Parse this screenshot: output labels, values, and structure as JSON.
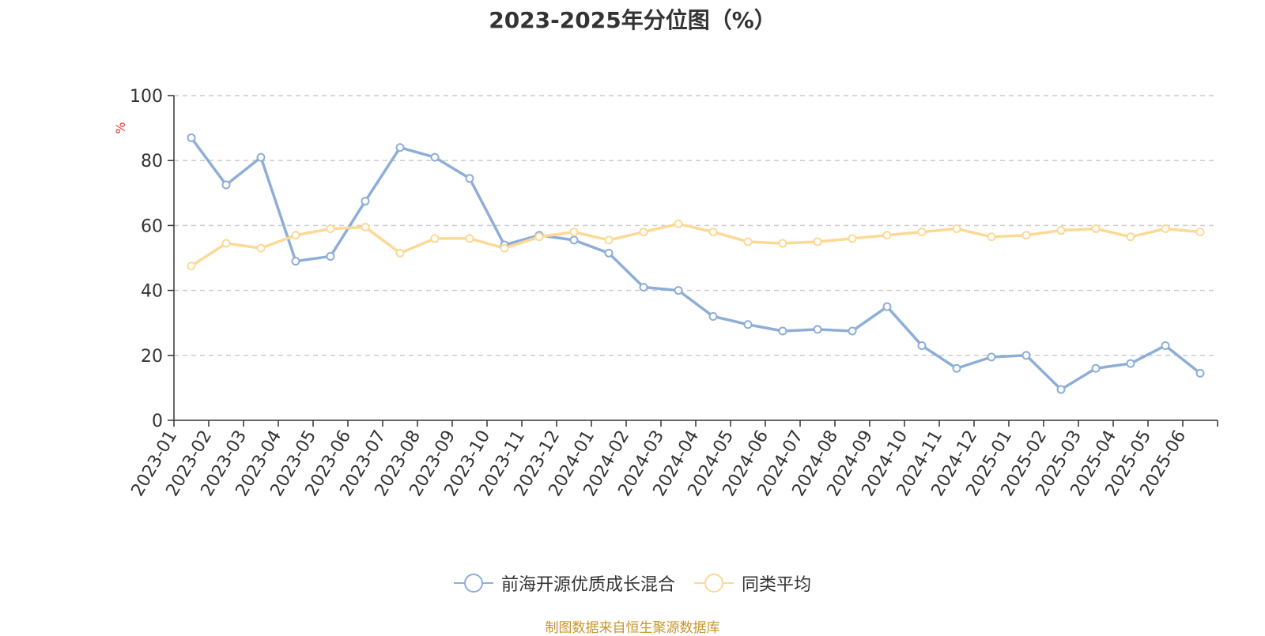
{
  "chart_data": {
    "type": "line",
    "title": "2023-2025年分位图（%）",
    "ylabel": "%",
    "ylim": [
      0,
      100
    ],
    "yticks": [
      "0",
      "20",
      "40",
      "60",
      "80",
      "100"
    ],
    "grid": true,
    "legend_position": "bottom",
    "categories": [
      "2023-01",
      "2023-02",
      "2023-03",
      "2023-04",
      "2023-05",
      "2023-06",
      "2023-07",
      "2023-08",
      "2023-09",
      "2023-10",
      "2023-11",
      "2023-12",
      "2024-01",
      "2024-02",
      "2024-03",
      "2024-04",
      "2024-05",
      "2024-06",
      "2024-07",
      "2024-08",
      "2024-09",
      "2024-10",
      "2024-11",
      "2024-12",
      "2025-01",
      "2025-02",
      "2025-03",
      "2025-04",
      "2025-05",
      "2025-06"
    ],
    "series": [
      {
        "name": "前海开源优质成长混合",
        "color": "#8eaed8",
        "values": [
          87,
          72.5,
          81,
          49,
          50.5,
          67.5,
          84,
          81,
          74.5,
          54,
          57,
          55.5,
          51.5,
          41,
          40,
          32,
          29.5,
          27.5,
          28,
          27.5,
          35,
          23,
          16,
          19.5,
          20,
          9.5,
          16,
          17.5,
          23,
          14.5
        ]
      },
      {
        "name": "同类平均",
        "color": "#fcd995",
        "values": [
          47.5,
          54.5,
          53,
          57,
          59,
          59.5,
          51.5,
          56,
          56,
          53,
          56.5,
          58,
          55.5,
          58,
          60.5,
          58,
          55,
          54.5,
          55,
          56,
          57,
          58,
          59,
          56.5,
          57,
          58.5,
          59,
          56.5,
          59,
          58
        ]
      }
    ]
  },
  "source_text": "制图数据来自恒生聚源数据库"
}
